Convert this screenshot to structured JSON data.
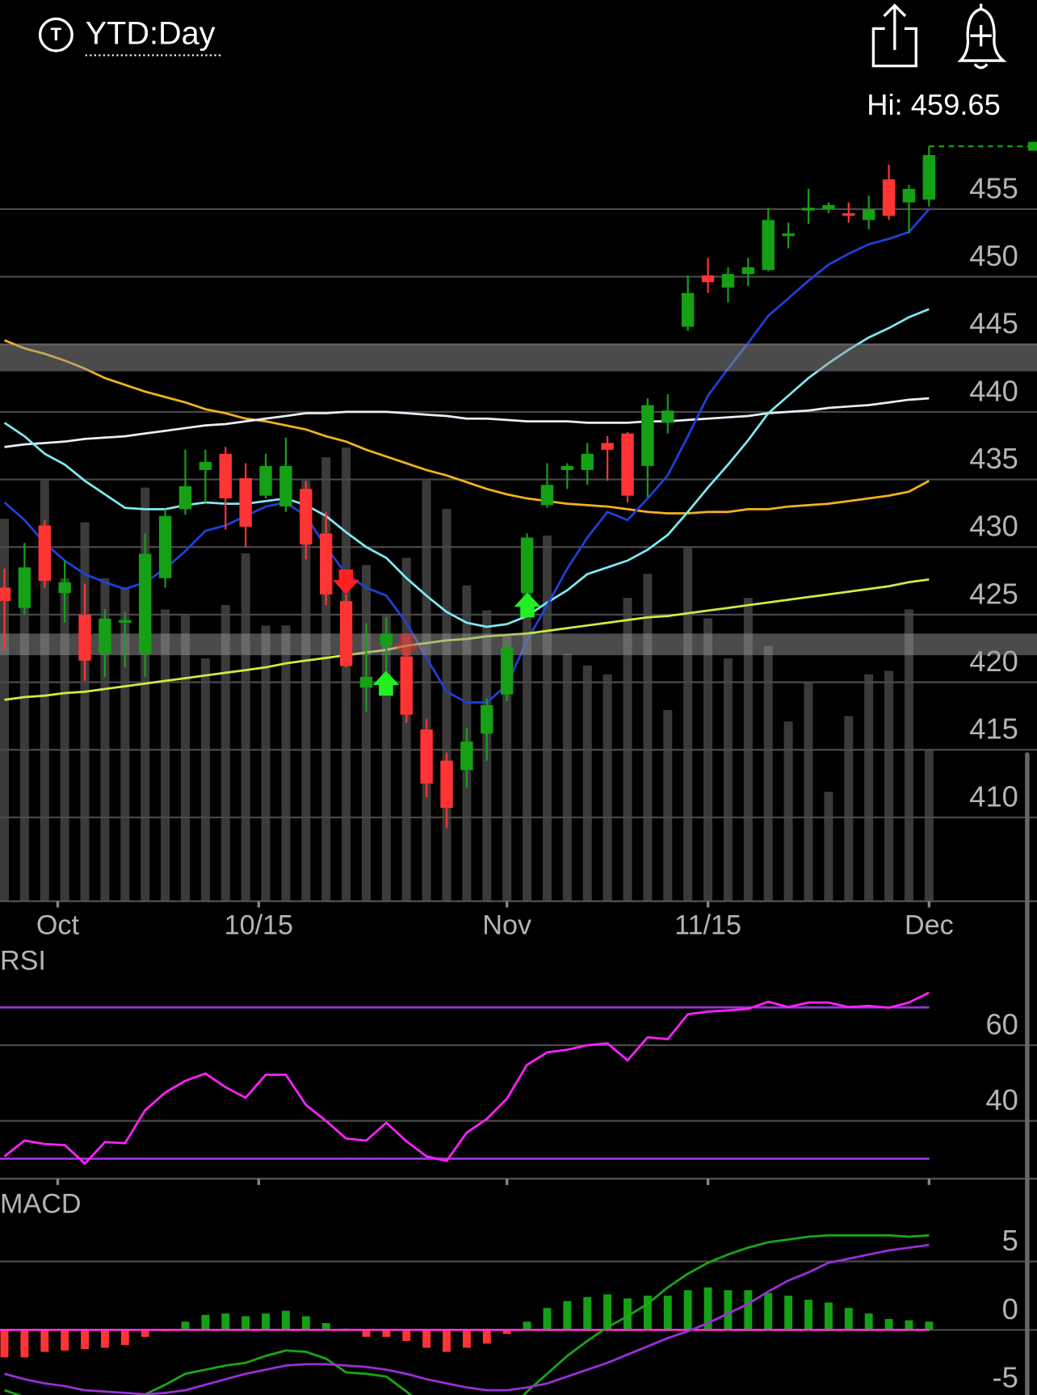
{
  "header": {
    "icon": "T",
    "title": "YTD:Day",
    "high_label": "Hi: 459.65"
  },
  "chart_data": [
    {
      "type": "candlestick",
      "x": [
        0,
        1,
        2,
        3,
        4,
        5,
        6,
        7,
        8,
        9,
        10,
        11,
        12,
        13,
        14,
        15,
        16,
        17,
        18,
        19,
        20,
        21,
        22,
        23,
        24,
        25,
        26,
        27,
        28,
        29,
        30,
        31,
        32,
        33,
        34,
        35,
        36,
        37,
        38,
        39,
        40,
        41,
        42,
        43,
        44,
        45,
        46
      ],
      "open": [
        427.0,
        425.5,
        431.6,
        426.6,
        425.0,
        422.1,
        424.4,
        422.1,
        427.7,
        432.8,
        435.7,
        436.9,
        435.1,
        433.8,
        433.0,
        434.3,
        431.0,
        426.0,
        419.6,
        422.7,
        421.9,
        416.5,
        414.2,
        413.5,
        416.2,
        419.1,
        426.6,
        433.1,
        435.7,
        435.7,
        437.7,
        438.4,
        436.0,
        439.2,
        446.3,
        450.1,
        449.2,
        450.2,
        450.5,
        453.0,
        454.9,
        455.0,
        454.7,
        454.2,
        457.2,
        455.5,
        455.7
      ],
      "high": [
        428.4,
        430.3,
        432.0,
        429.0,
        427.3,
        425.4,
        425.2,
        431.0,
        432.8,
        437.2,
        437.2,
        437.4,
        436.2,
        436.9,
        438.1,
        434.9,
        432.6,
        426.5,
        424.4,
        424.8,
        422.5,
        417.3,
        414.8,
        416.6,
        418.8,
        423.1,
        431.0,
        436.2,
        436.2,
        437.7,
        438.2,
        438.5,
        441.0,
        441.3,
        450.1,
        451.4,
        450.7,
        451.4,
        455.1,
        454.0,
        456.5,
        455.5,
        455.5,
        456.0,
        458.3,
        456.8,
        459.65
      ],
      "low": [
        422.4,
        425.0,
        427.0,
        424.4,
        420.1,
        420.4,
        421.1,
        420.4,
        427.0,
        432.4,
        433.3,
        431.3,
        430.0,
        433.6,
        432.6,
        429.1,
        425.7,
        421.1,
        417.8,
        420.4,
        417.0,
        411.5,
        409.2,
        412.2,
        414.2,
        418.6,
        426.4,
        432.9,
        434.3,
        434.6,
        434.9,
        433.3,
        433.7,
        438.4,
        446.0,
        448.8,
        448.1,
        449.3,
        450.4,
        452.1,
        453.9,
        454.7,
        454.0,
        453.5,
        454.2,
        453.2,
        455.2
      ],
      "close": [
        426.0,
        428.5,
        427.5,
        427.4,
        421.6,
        424.7,
        424.6,
        429.5,
        432.3,
        434.5,
        436.3,
        433.6,
        431.5,
        436.0,
        436.0,
        430.2,
        426.5,
        421.2,
        420.4,
        423.6,
        417.6,
        412.5,
        410.7,
        415.6,
        418.3,
        422.6,
        430.7,
        434.6,
        436.0,
        436.9,
        437.2,
        433.8,
        440.5,
        440.1,
        448.8,
        449.6,
        450.2,
        450.7,
        454.2,
        453.2,
        455.1,
        455.3,
        454.5,
        455.0,
        454.5,
        456.5,
        459.0
      ],
      "up_color": "#15a015",
      "down_color": "#ff3434",
      "volume": [
        43.0,
        37.3,
        47.3,
        36.3,
        42.6,
        36.3,
        35.3,
        46.5,
        32.8,
        32.1,
        27.3,
        33.3,
        39.1,
        31.0,
        31.0,
        47.3,
        49.9,
        51.0,
        37.8,
        32.3,
        38.6,
        47.3,
        44.1,
        35.5,
        32.7,
        29.8,
        40.3,
        41.1,
        27.8,
        26.5,
        25.5,
        34.1,
        36.8,
        21.5,
        39.7,
        31.8,
        27.3,
        34.1,
        28.7,
        20.2,
        24.6,
        12.3,
        20.8,
        25.5,
        25.9,
        32.8,
        17.0
      ],
      "vlim": [
        0,
        87.3
      ],
      "volume_color": "#3a3a3a",
      "overlays": [
        {
          "color": "#f5b21e",
          "values": [
            445.3,
            444.7,
            444.3,
            443.8,
            443.2,
            442.5,
            442.0,
            441.5,
            441.1,
            440.7,
            440.2,
            439.9,
            439.5,
            439.3,
            439.0,
            438.7,
            438.2,
            437.8,
            437.2,
            436.7,
            436.2,
            435.7,
            435.3,
            434.8,
            434.3,
            433.9,
            433.6,
            433.4,
            433.2,
            433.1,
            433.0,
            432.8,
            432.6,
            432.5,
            432.5,
            432.6,
            432.6,
            432.8,
            432.8,
            433.0,
            433.1,
            433.2,
            433.4,
            433.6,
            433.8,
            434.1,
            434.9
          ]
        },
        {
          "color": "#e6eef8",
          "values": [
            437.4,
            437.6,
            437.7,
            437.8,
            438.0,
            438.1,
            438.2,
            438.4,
            438.6,
            438.8,
            439.0,
            439.1,
            439.3,
            439.5,
            439.7,
            439.9,
            439.9,
            440.0,
            440.0,
            440.0,
            439.9,
            439.8,
            439.7,
            439.5,
            439.5,
            439.4,
            439.3,
            439.3,
            439.3,
            439.2,
            439.2,
            439.2,
            439.3,
            439.3,
            439.4,
            439.5,
            439.6,
            439.7,
            439.9,
            440.0,
            440.1,
            440.3,
            440.4,
            440.5,
            440.7,
            440.9,
            441.0
          ]
        },
        {
          "color": "#80e8f0",
          "values": [
            439.2,
            438.2,
            436.9,
            436.1,
            434.9,
            433.9,
            432.9,
            432.8,
            432.8,
            433.1,
            433.3,
            433.2,
            433.2,
            433.4,
            433.6,
            433.1,
            432.3,
            431.1,
            430.0,
            429.2,
            427.7,
            426.4,
            425.2,
            424.4,
            424.1,
            424.3,
            424.9,
            425.9,
            426.8,
            428.0,
            428.5,
            429.0,
            429.8,
            430.9,
            432.6,
            434.4,
            436.1,
            437.9,
            439.9,
            441.2,
            442.5,
            443.6,
            444.6,
            445.5,
            446.2,
            447.0,
            447.6
          ]
        },
        {
          "color": "#2040d8",
          "values": [
            433.3,
            432.0,
            430.3,
            429.0,
            428.0,
            427.4,
            426.9,
            427.4,
            428.4,
            429.7,
            431.2,
            431.6,
            432.3,
            433.0,
            433.3,
            432.3,
            430.0,
            428.0,
            427.0,
            426.4,
            424.4,
            421.8,
            419.3,
            418.5,
            418.5,
            419.8,
            423.1,
            425.7,
            428.4,
            430.7,
            432.6,
            432.0,
            433.6,
            435.3,
            438.2,
            441.2,
            443.2,
            445.1,
            447.1,
            448.4,
            449.7,
            450.9,
            451.7,
            452.4,
            452.8,
            453.3,
            455.0
          ]
        },
        {
          "color": "#c8f040",
          "values": [
            418.7,
            418.9,
            419.0,
            419.2,
            419.3,
            419.5,
            419.7,
            419.9,
            420.1,
            420.3,
            420.5,
            420.7,
            420.9,
            421.1,
            421.4,
            421.6,
            421.8,
            422.0,
            422.2,
            422.4,
            422.7,
            422.9,
            423.1,
            423.2,
            423.4,
            423.5,
            423.6,
            423.8,
            424.0,
            424.2,
            424.4,
            424.6,
            424.8,
            424.9,
            425.1,
            425.3,
            425.5,
            425.7,
            425.9,
            426.1,
            426.3,
            426.5,
            426.7,
            426.9,
            427.1,
            427.4,
            427.6
          ]
        }
      ],
      "zones": [
        [
          443.0,
          445.0
        ],
        [
          422.0,
          423.6
        ]
      ],
      "xlim": [
        -0.22,
        51.37
      ],
      "xticks": [
        {
          "value": 2.65,
          "label": "Oct"
        },
        {
          "value": 12.65,
          "label": "10/15"
        },
        {
          "value": 25.0,
          "label": "Nov"
        },
        {
          "value": 35.0,
          "label": "11/15"
        },
        {
          "value": 46.0,
          "label": "Dec"
        }
      ],
      "ylim": [
        403.8,
        461.25
      ],
      "yticks": [
        410,
        415,
        420,
        425,
        430,
        435,
        440,
        445,
        450,
        455
      ],
      "grid": true
    },
    {
      "type": "line",
      "label": "RSI",
      "series": [
        {
          "color": "#ff22ff",
          "values": [
            30.6,
            34.8,
            33.9,
            33.6,
            28.7,
            34.4,
            34.1,
            42.8,
            47.5,
            50.6,
            52.5,
            48.9,
            46.1,
            52.2,
            52.2,
            44.2,
            40.0,
            35.3,
            34.8,
            39.5,
            34.6,
            30.6,
            29.4,
            36.9,
            40.5,
            45.9,
            54.8,
            58.1,
            58.8,
            60.0,
            60.5,
            56.0,
            62.1,
            61.6,
            68.2,
            68.9,
            69.2,
            69.6,
            71.5,
            70.1,
            71.3,
            71.3,
            70.1,
            70.4,
            69.9,
            71.3,
            73.9
          ]
        }
      ],
      "levels": [
        30,
        70
      ],
      "level_color": "#9a30d8",
      "ylim": [
        24.7,
        78.8
      ],
      "yticks": [
        40,
        60
      ],
      "grid": true
    },
    {
      "type": "macd",
      "label": "MACD",
      "histogram": [
        -2.0,
        -2.0,
        -1.6,
        -1.5,
        -1.4,
        -1.3,
        -1.1,
        -0.5,
        -0.1,
        0.6,
        1.1,
        1.2,
        1.0,
        1.2,
        1.4,
        1.0,
        0.5,
        0.1,
        -0.5,
        -0.5,
        -0.8,
        -1.3,
        -1.6,
        -1.3,
        -1.0,
        -0.3,
        0.6,
        1.6,
        2.1,
        2.4,
        2.6,
        2.3,
        2.5,
        2.5,
        2.9,
        3.1,
        2.9,
        2.9,
        2.7,
        2.5,
        2.2,
        2.0,
        1.6,
        1.2,
        0.8,
        0.7,
        0.6
      ],
      "up_color": "#15a015",
      "down_color": "#ff3434",
      "baseline_color": "#ff30d0",
      "series": [
        {
          "color": "#18a818",
          "values": [
            -4.4,
            -4.9,
            -5.4,
            -5.8,
            -6.0,
            -6.0,
            -5.4,
            -4.7,
            -4.0,
            -3.2,
            -2.9,
            -2.6,
            -2.4,
            -1.9,
            -1.5,
            -1.6,
            -2.1,
            -3.1,
            -3.2,
            -3.4,
            -4.5,
            -5.7,
            -6.8,
            -7.5,
            -7.5,
            -6.2,
            -4.5,
            -3.2,
            -1.9,
            -0.8,
            0.2,
            1.0,
            1.9,
            3.1,
            4.1,
            4.9,
            5.5,
            6.0,
            6.4,
            6.6,
            6.8,
            6.9,
            6.9,
            6.9,
            6.9,
            6.8,
            6.9
          ]
        },
        {
          "color": "#9a30d8",
          "values": [
            -3.2,
            -3.6,
            -3.9,
            -4.1,
            -4.4,
            -4.5,
            -4.6,
            -4.7,
            -4.6,
            -4.4,
            -4.0,
            -3.6,
            -3.2,
            -2.9,
            -2.6,
            -2.5,
            -2.5,
            -2.6,
            -2.7,
            -2.9,
            -3.2,
            -3.6,
            -3.9,
            -4.2,
            -4.4,
            -4.4,
            -4.2,
            -3.9,
            -3.4,
            -2.9,
            -2.4,
            -1.8,
            -1.2,
            -0.6,
            -0.1,
            0.5,
            1.2,
            1.9,
            2.8,
            3.6,
            4.2,
            4.9,
            5.2,
            5.5,
            5.8,
            6.0,
            6.2
          ]
        }
      ],
      "ylim": [
        -4.74,
        10.06
      ],
      "yticks": [
        -5,
        0,
        5
      ],
      "grid": true
    }
  ]
}
